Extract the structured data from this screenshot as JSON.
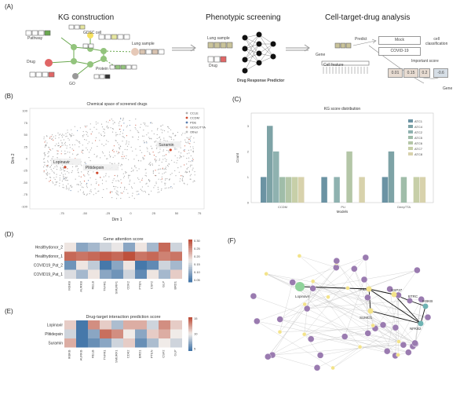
{
  "panel_labels": {
    "a": "(A)",
    "b": "(B)",
    "c": "(C)",
    "d": "(D)",
    "e": "(E)",
    "f": "(F)"
  },
  "panel_a": {
    "kg_title": "KG construction",
    "pheno_title": "Phenotypic screening",
    "ctd_title": "Cell-target-drug analysis",
    "pathway": "Pathway",
    "gdsc_cell": "GDSC cell",
    "lung_sample": "Lung sample",
    "drug": "Drug",
    "protein": "Protein",
    "go": "GO",
    "ps_lung_sample": "Lung sample",
    "ps_drug": "Drug",
    "drp": "Drug Response Predictor",
    "predict": "Predict",
    "mock": "Mock",
    "covid": "COVID-19",
    "cell_classification": "cell\nclassification",
    "important_score": "Important score",
    "scores": [
      "0.01",
      "0.15",
      "0.2",
      "-0.6"
    ],
    "gene_left": "Gene",
    "cell_feature": "Cell feature",
    "gene_right": "Gene"
  },
  "chart_data": [
    {
      "type": "scatter",
      "panel": "B",
      "title": "Chemical space of screened drugs",
      "xlabel": "Dim 1",
      "ylabel": "Dim 2",
      "xlim": [
        -110,
        80
      ],
      "ylim": [
        -105,
        105
      ],
      "x_ticks": [
        "-75",
        "-50",
        "-25",
        "0",
        "25",
        "50",
        "75"
      ],
      "y_ticks": [
        "100",
        "75",
        "50",
        "25",
        "0",
        "-25",
        "-50",
        "-75",
        "-100"
      ],
      "legend": [
        "CCLE",
        "CCDM",
        "PDE",
        "GDSC/TTA",
        "Other"
      ],
      "legend_colors": [
        "#b0b0b0",
        "#d04a2e",
        "#5b7fb0",
        "#d9b0a0",
        "#c0c0c0"
      ],
      "annotations": [
        {
          "label": "Suramin",
          "x": 40,
          "y": 28
        },
        {
          "label": "Lopinavir",
          "x": -75,
          "y": -8
        },
        {
          "label": "Plitidepsin",
          "x": -40,
          "y": -20
        }
      ]
    },
    {
      "type": "bar",
      "panel": "C",
      "title": "KG score distribution",
      "xlabel": "Models",
      "ylabel": "Count",
      "categories": [
        "CCDM",
        "PLI",
        "DeepTTA"
      ],
      "ylim": [
        0,
        3.5
      ],
      "y_ticks": [
        "0",
        "1",
        "2",
        "3"
      ],
      "series": [
        {
          "name": "ATC1",
          "color": "#6b93a3",
          "values": [
            1,
            1,
            1
          ]
        },
        {
          "name": "ATC4",
          "color": "#7ea3a6",
          "values": [
            3,
            0,
            2
          ]
        },
        {
          "name": "ATC2",
          "color": "#8fb2b0",
          "values": [
            2,
            1,
            0
          ]
        },
        {
          "name": "ATC5",
          "color": "#a0bda9",
          "values": [
            1,
            0,
            1
          ]
        },
        {
          "name": "ATC6",
          "color": "#b4c6a7",
          "values": [
            1,
            2,
            0
          ]
        },
        {
          "name": "ATC7",
          "color": "#c7cfa8",
          "values": [
            1,
            0,
            1
          ]
        },
        {
          "name": "ATC8",
          "color": "#d8d2ac",
          "values": [
            1,
            1,
            1
          ]
        }
      ]
    },
    {
      "type": "heatmap",
      "panel": "D",
      "title": "Gene attention score",
      "rows": [
        "Healthydonor_2",
        "Healthydonor_1",
        "COVID19_Pat_2",
        "COVID19_Pat_1"
      ],
      "cols": [
        "IKBKB",
        "AURKB",
        "RELB",
        "TNFR1",
        "SMURF1",
        "CDK2",
        "PTEN",
        "CSF2",
        "GLP",
        "BRD1"
      ],
      "scale_ticks": [
        "0.30",
        "0.25",
        "0.20",
        "0.15",
        "0.10",
        "0.05"
      ],
      "values": [
        [
          0.18,
          0.1,
          0.12,
          0.15,
          0.17,
          0.1,
          0.18,
          0.12,
          0.28,
          0.15
        ],
        [
          0.28,
          0.27,
          0.28,
          0.29,
          0.28,
          0.3,
          0.27,
          0.28,
          0.26,
          0.27
        ],
        [
          0.08,
          0.18,
          0.14,
          0.05,
          0.1,
          0.18,
          0.05,
          0.07,
          0.15,
          0.12
        ],
        [
          0.16,
          0.12,
          0.18,
          0.1,
          0.08,
          0.15,
          0.07,
          0.18,
          0.12,
          0.2
        ]
      ]
    },
    {
      "type": "heatmap",
      "panel": "E",
      "title": "Drug-target interaction prediction score",
      "rows": [
        "Lopinavir",
        "Plitidepsin",
        "Suramin"
      ],
      "cols": [
        "IKBKB",
        "AURKB",
        "RELB",
        "TNFR1",
        "SMURF1",
        "CDK2",
        "BRD1",
        "PTEN",
        "CSF2",
        "GLP"
      ],
      "scale_ticks": [
        "15",
        "10",
        "5"
      ],
      "values": [
        [
          11,
          5,
          13,
          11,
          8,
          12,
          12,
          9,
          13,
          11
        ],
        [
          9,
          3,
          7,
          14,
          13,
          10,
          7,
          11,
          12,
          10
        ],
        [
          12,
          4,
          6,
          7,
          9,
          11,
          6,
          8,
          10,
          9
        ]
      ]
    }
  ],
  "panel_f": {
    "lopinavir": "Lopinavir",
    "tp53": "TP53",
    "usp37": "USP37",
    "btrc": "BTRC",
    "ikbkb": "IKBKB",
    "sumo1": "SUMO1",
    "nfkb2": "NFKB2"
  }
}
